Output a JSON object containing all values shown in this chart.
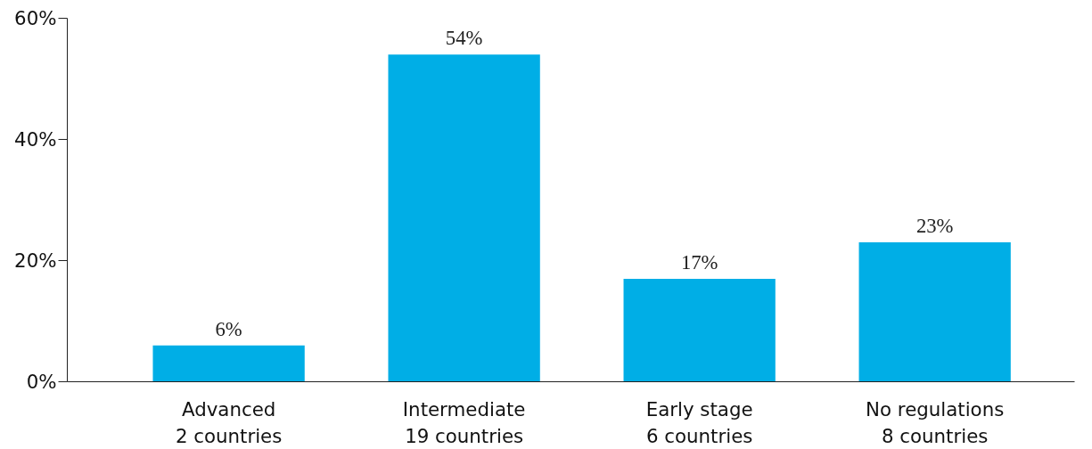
{
  "chart_data": {
    "type": "bar",
    "categories": [
      "Advanced\n2 countries",
      "Intermediate\n19 countries",
      "Early stage\n6 countries",
      "No regulations\n8 countries"
    ],
    "values": [
      6,
      54,
      17,
      23
    ],
    "value_labels": [
      "6%",
      "54%",
      "17%",
      "23%"
    ],
    "color": "#00aee6",
    "ylim": [
      0,
      60
    ],
    "yticks": [
      {
        "value": 0,
        "label": "0%"
      },
      {
        "value": 20,
        "label": "20%"
      },
      {
        "value": 40,
        "label": "40%"
      },
      {
        "value": 60,
        "label": "60%"
      }
    ],
    "grid": false
  }
}
